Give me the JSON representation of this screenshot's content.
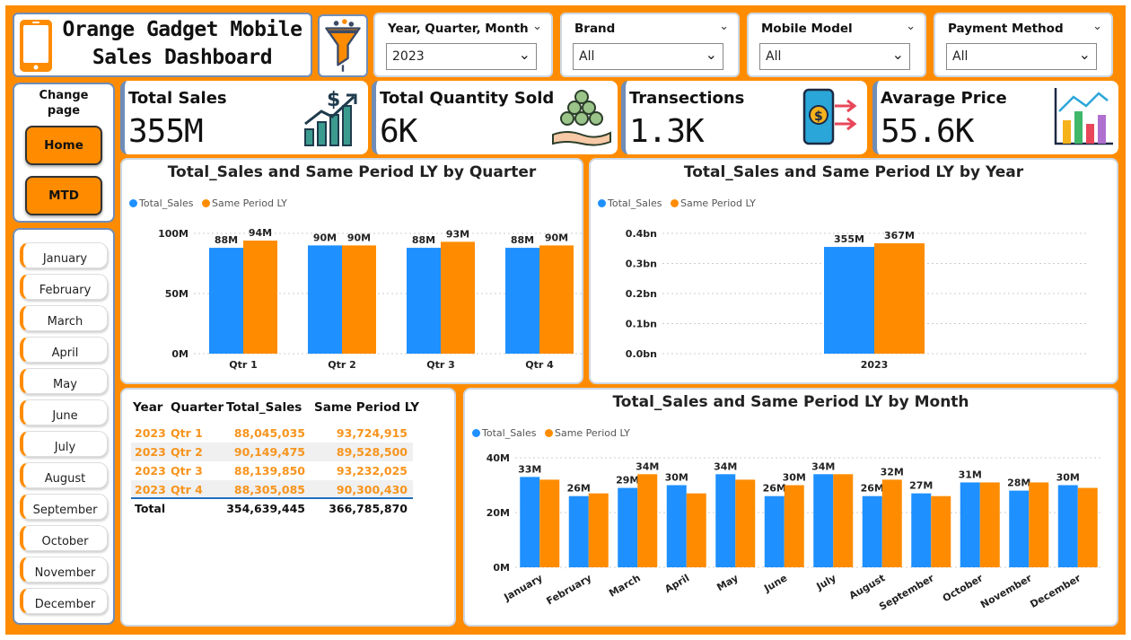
{
  "title": {
    "line1": "Orange Gadget Mobile",
    "line2": "Sales Dashboard"
  },
  "filters": [
    {
      "label": "Year, Quarter, Month",
      "value": "2023"
    },
    {
      "label": "Brand",
      "value": "All"
    },
    {
      "label": "Mobile Model",
      "value": "All"
    },
    {
      "label": "Payment Method",
      "value": "All"
    }
  ],
  "nav": {
    "title": "Change page",
    "home": "Home",
    "mtd": "MTD"
  },
  "months": [
    "January",
    "February",
    "March",
    "April",
    "May",
    "June",
    "July",
    "August",
    "September",
    "October",
    "November",
    "December"
  ],
  "kpis": [
    {
      "label": "Total Sales",
      "value": "355M",
      "icon": "growth-chart-icon"
    },
    {
      "label": "Total Quantity Sold",
      "value": "6K",
      "icon": "coins-hand-icon"
    },
    {
      "label": "Transections",
      "value": "1.3K",
      "icon": "mobile-payment-icon"
    },
    {
      "label": "Avarage Price",
      "value": "55.6K",
      "icon": "bar-chart-icon"
    }
  ],
  "colors": {
    "accent": "#FF8C00",
    "total_sales": "#1E90FF",
    "same_period": "#FF8C00",
    "table_text": "#F7941D",
    "card_border": "#6f8db8"
  },
  "legend": {
    "total_sales": "Total_Sales",
    "same_period": "Same Period LY"
  },
  "chart_data": [
    {
      "type": "bar",
      "title": "Total_Sales and Same Period LY by Quarter",
      "categories": [
        "Qtr 1",
        "Qtr 2",
        "Qtr 3",
        "Qtr 4"
      ],
      "series": [
        {
          "name": "Total_Sales",
          "values": [
            88,
            90,
            88,
            88
          ],
          "labels": [
            "88M",
            "90M",
            "88M",
            "88M"
          ]
        },
        {
          "name": "Same Period LY",
          "values": [
            94,
            90,
            93,
            90
          ],
          "labels": [
            "94M",
            "90M",
            "93M",
            "90M"
          ]
        }
      ],
      "ylim": [
        0,
        100
      ],
      "yticks": [
        0,
        50,
        100
      ],
      "yticklabels": [
        "0M",
        "50M",
        "100M"
      ],
      "grid": true,
      "legend": "top-left"
    },
    {
      "type": "bar",
      "title": "Total_Sales and Same Period LY by Year",
      "categories": [
        "2023"
      ],
      "series": [
        {
          "name": "Total_Sales",
          "values": [
            355
          ],
          "labels": [
            "355M"
          ]
        },
        {
          "name": "Same Period LY",
          "values": [
            367
          ],
          "labels": [
            "367M"
          ]
        }
      ],
      "ylim": [
        0,
        400
      ],
      "yticks": [
        0,
        100,
        200,
        300,
        400
      ],
      "yticklabels": [
        "0.0bn",
        "0.1bn",
        "0.2bn",
        "0.3bn",
        "0.4bn"
      ],
      "grid": true,
      "legend": "top-left"
    },
    {
      "type": "bar",
      "title": "Total_Sales and Same Period LY by Month",
      "categories": [
        "January",
        "February",
        "March",
        "April",
        "May",
        "June",
        "July",
        "August",
        "September",
        "October",
        "November",
        "December"
      ],
      "series": [
        {
          "name": "Total_Sales",
          "values": [
            33,
            26,
            29,
            30,
            34,
            26,
            34,
            26,
            27,
            31,
            28,
            30
          ],
          "labels": [
            "33M",
            "26M",
            "29M",
            "30M",
            "34M",
            "26M",
            "34M",
            "26M",
            "27M",
            "31M",
            "28M",
            "30M"
          ]
        },
        {
          "name": "Same Period LY",
          "values": [
            32,
            27,
            34,
            27,
            32,
            30,
            34,
            32,
            26,
            31,
            31,
            29
          ],
          "labels": [
            "",
            "",
            "34M",
            "",
            "",
            "30M",
            "",
            "32M",
            "",
            "",
            "",
            ""
          ]
        }
      ],
      "ylim": [
        0,
        40
      ],
      "yticks": [
        0,
        20,
        40
      ],
      "yticklabels": [
        "0M",
        "20M",
        "40M"
      ],
      "grid": true,
      "legend": "top-left"
    }
  ],
  "table": {
    "headers": [
      "Year",
      "Quarter",
      "Total_Sales",
      "Same Period LY"
    ],
    "rows": [
      [
        "2023",
        "Qtr 1",
        "88,045,035",
        "93,724,915"
      ],
      [
        "2023",
        "Qtr 2",
        "90,149,475",
        "89,528,500"
      ],
      [
        "2023",
        "Qtr 3",
        "88,139,850",
        "93,232,025"
      ],
      [
        "2023",
        "Qtr 4",
        "88,305,085",
        "90,300,430"
      ]
    ],
    "total": [
      "Total",
      "354,639,445",
      "366,785,870"
    ]
  }
}
